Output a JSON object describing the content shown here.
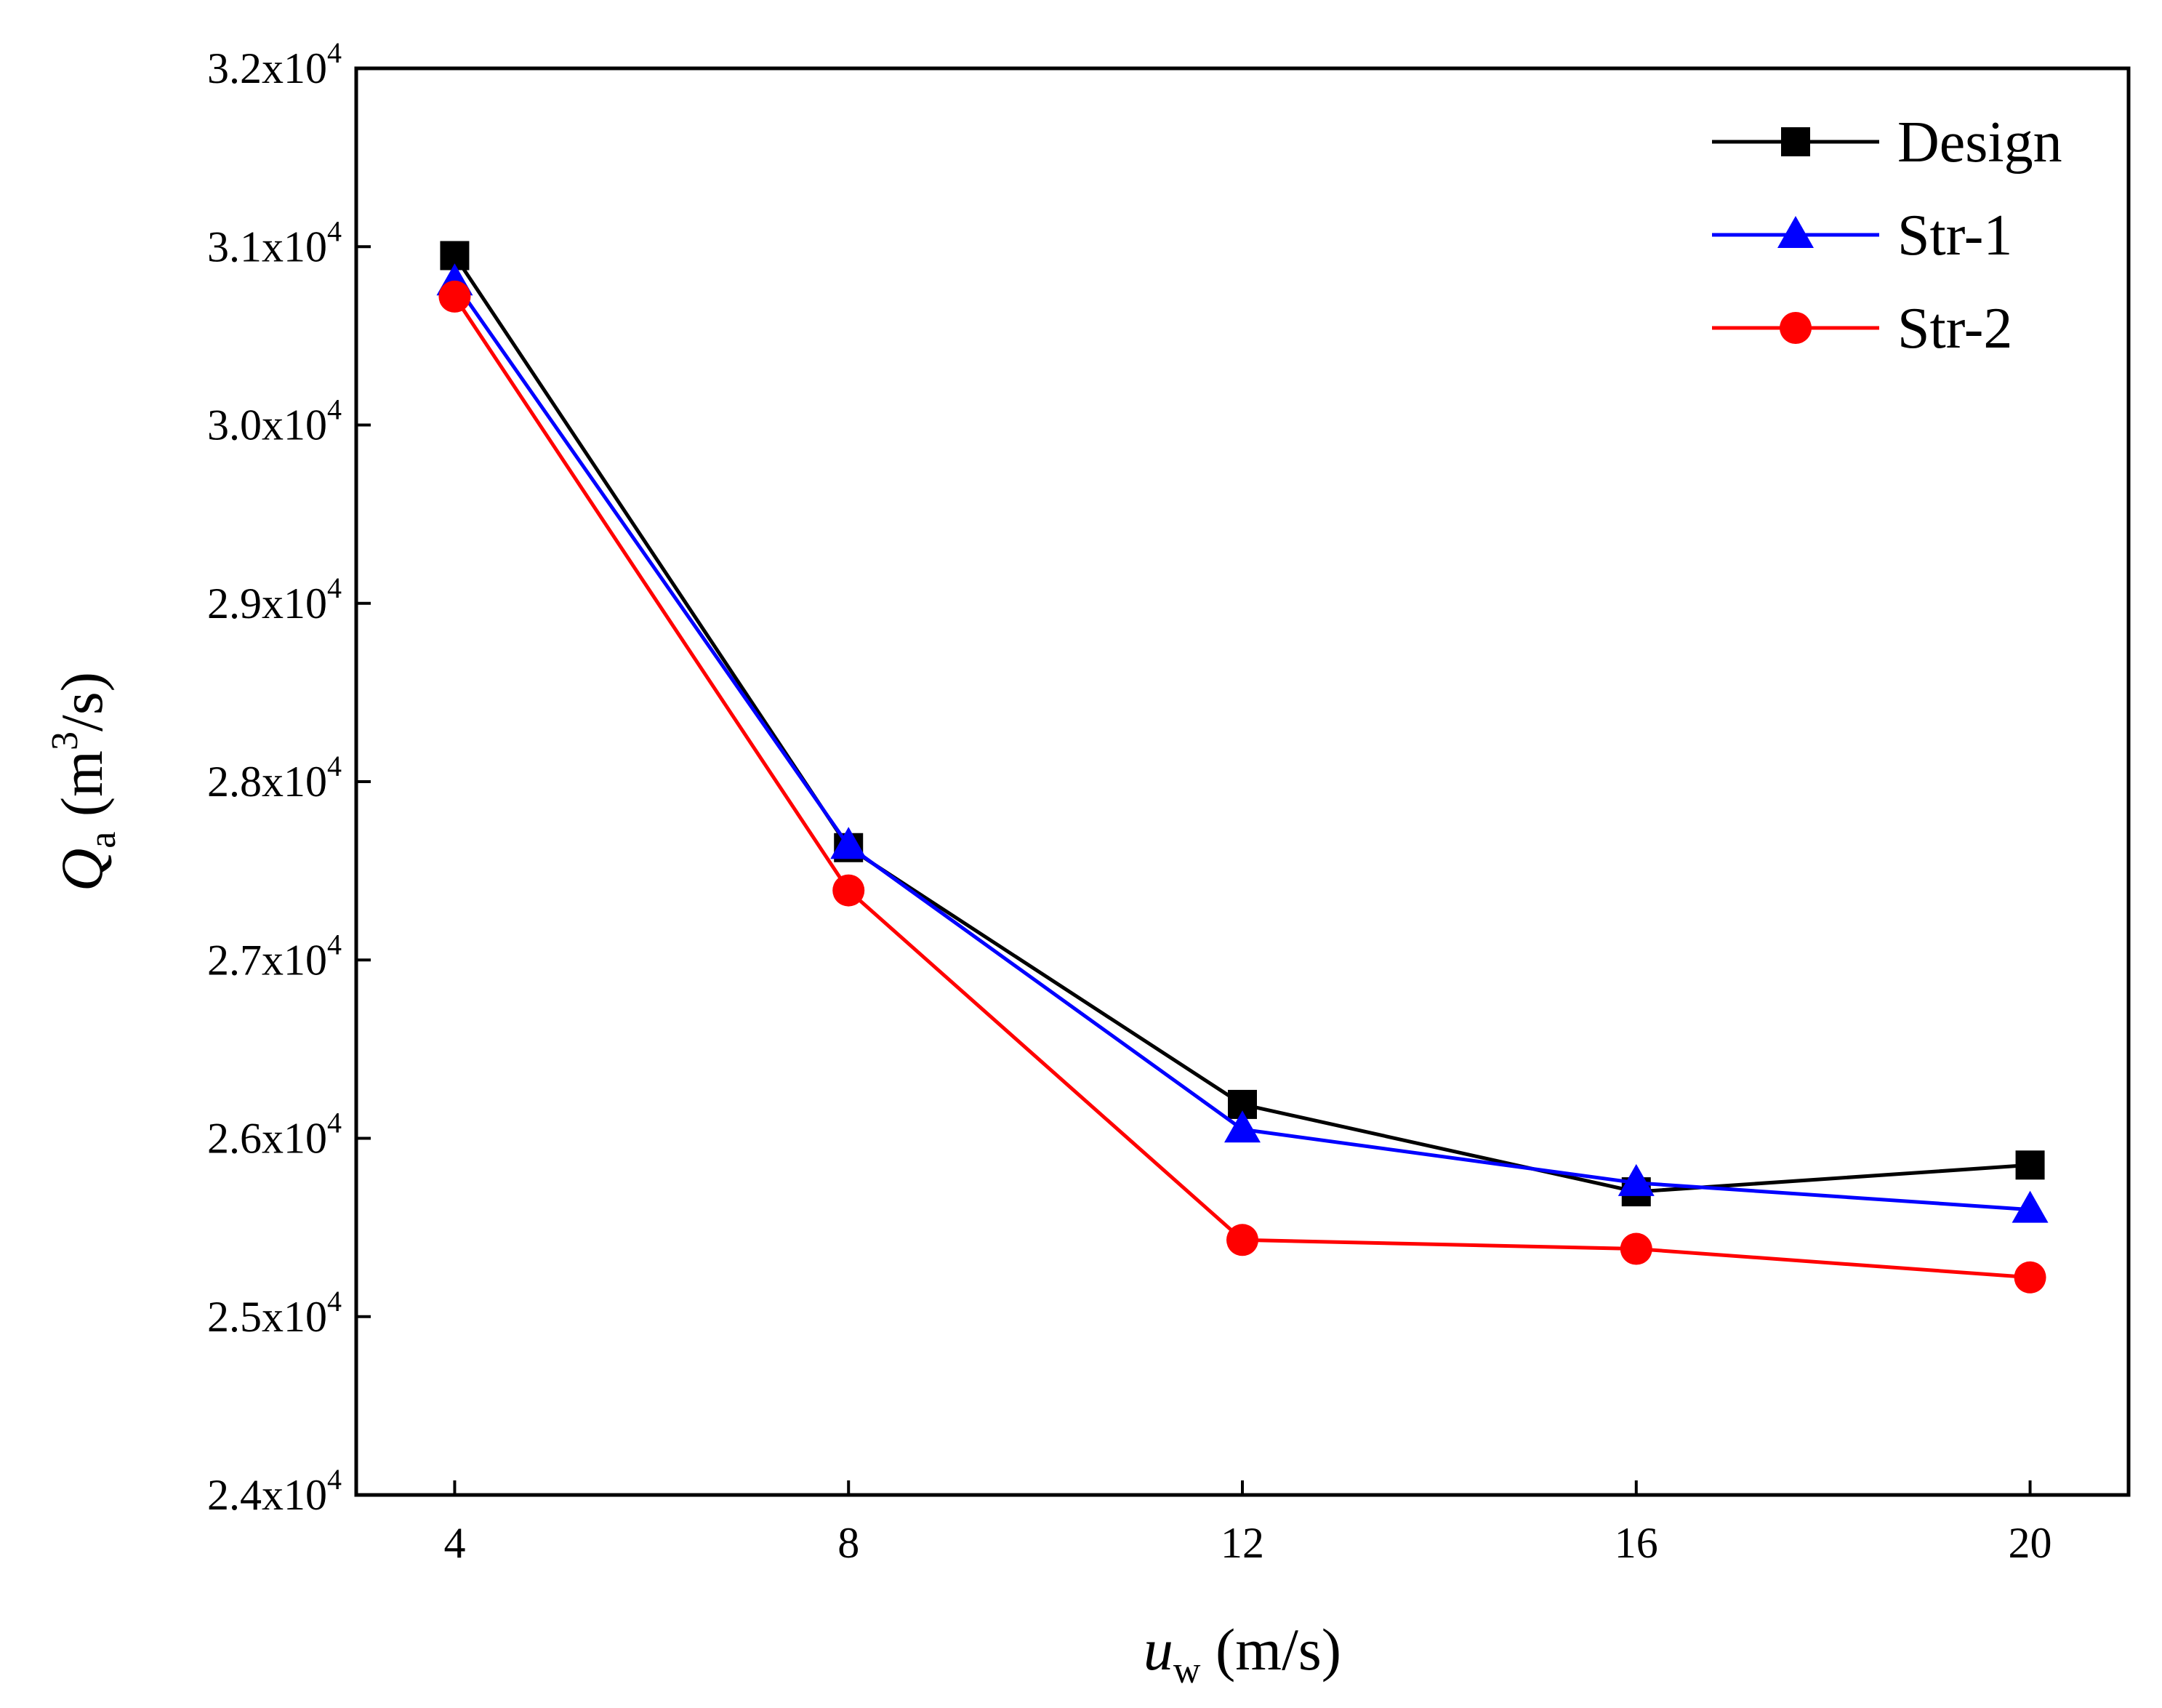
{
  "chart_data": {
    "type": "line",
    "x": [
      4,
      8,
      12,
      16,
      20
    ],
    "xticks": [
      "4",
      "8",
      "12",
      "16",
      "20"
    ],
    "xlim": [
      3,
      21
    ],
    "ylim": [
      24000,
      32000
    ],
    "yticks": [
      {
        "value": 24000,
        "mantissa": "2.4x10",
        "exp": "4"
      },
      {
        "value": 25000,
        "mantissa": "2.5x10",
        "exp": "4"
      },
      {
        "value": 26000,
        "mantissa": "2.6x10",
        "exp": "4"
      },
      {
        "value": 27000,
        "mantissa": "2.7x10",
        "exp": "4"
      },
      {
        "value": 28000,
        "mantissa": "2.8x10",
        "exp": "4"
      },
      {
        "value": 29000,
        "mantissa": "2.9x10",
        "exp": "4"
      },
      {
        "value": 30000,
        "mantissa": "3.0x10",
        "exp": "4"
      },
      {
        "value": 31000,
        "mantissa": "3.1x10",
        "exp": "4"
      },
      {
        "value": 32000,
        "mantissa": "3.2x10",
        "exp": "4"
      }
    ],
    "xlabel": {
      "symbol": "u",
      "sub": "w",
      "unit": " (m/s)"
    },
    "ylabel": {
      "symbol": "Q",
      "sub": "a",
      "unit_pre": " (m",
      "unit_sup": "3",
      "unit_post": "/s)"
    },
    "legend_position": "top-right",
    "series": [
      {
        "name": "Design",
        "color": "#000000",
        "marker": "square",
        "values": [
          30950,
          27630,
          26190,
          25700,
          25850
        ]
      },
      {
        "name": "Str-1",
        "color": "#0000ff",
        "marker": "triangle",
        "values": [
          30800,
          27640,
          26050,
          25750,
          25600
        ]
      },
      {
        "name": "Str-2",
        "color": "#ff0000",
        "marker": "circle",
        "values": [
          30720,
          27390,
          25430,
          25380,
          25220
        ]
      }
    ]
  }
}
